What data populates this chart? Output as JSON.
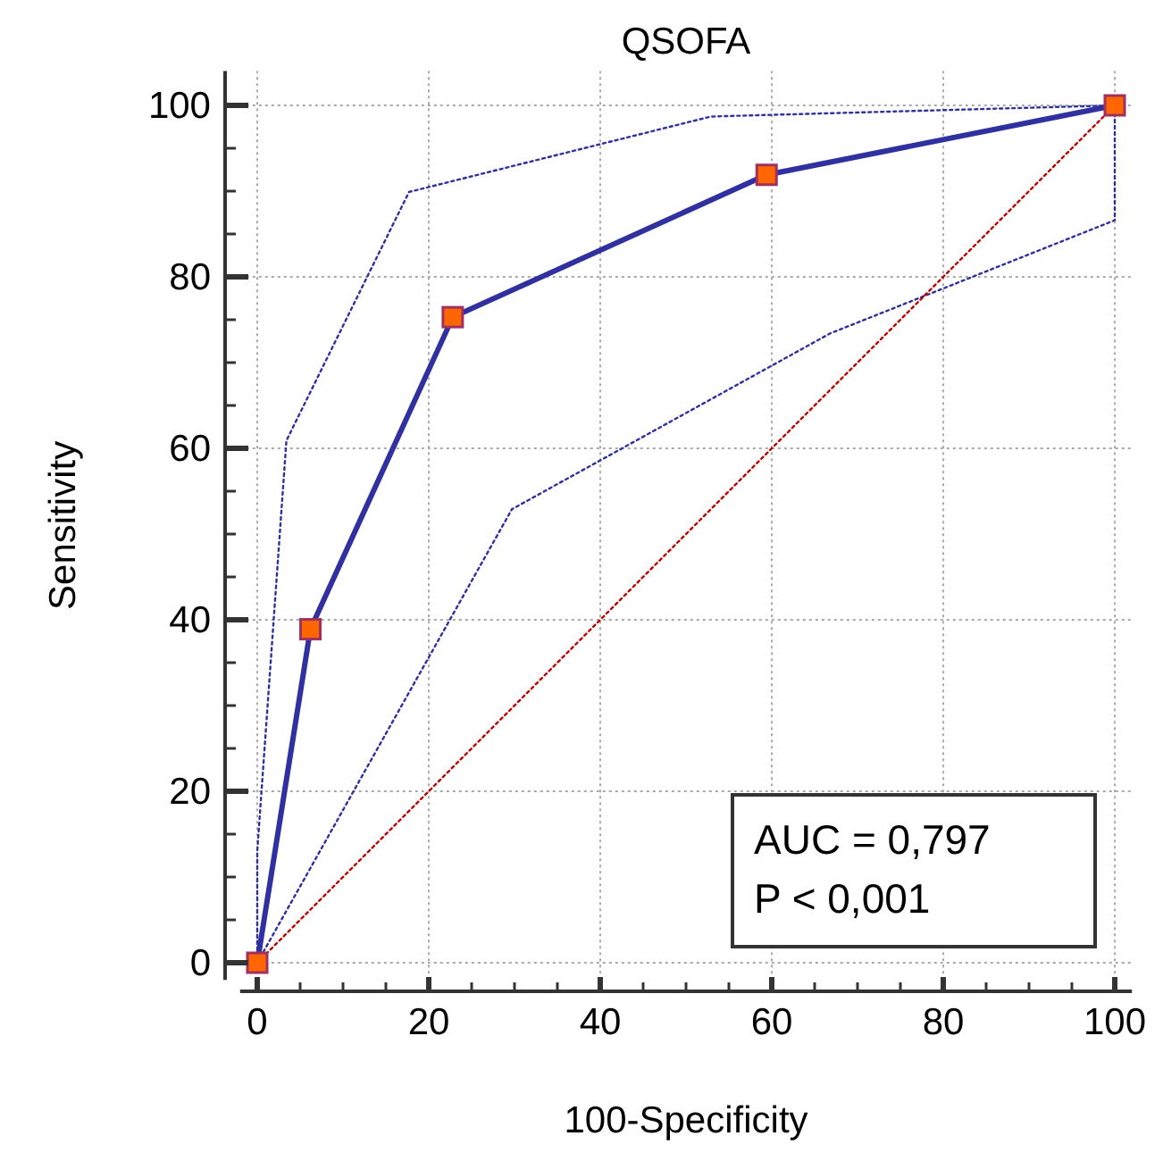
{
  "chart_data": {
    "type": "line",
    "title": "QSOFA",
    "xlabel": "100-Specificity",
    "ylabel": "Sensitivity",
    "xlim": [
      -2,
      102
    ],
    "ylim": [
      -2,
      104
    ],
    "xticks": [
      0,
      {
        "value": 5,
        "label": null
      },
      {
        "value": 10,
        "label": null
      },
      {
        "value": 15,
        "label": null
      },
      20,
      {
        "value": 25,
        "label": null
      },
      {
        "value": 30,
        "label": null
      },
      {
        "value": 35,
        "label": null
      },
      40,
      {
        "value": 45,
        "label": null
      },
      {
        "value": 50,
        "label": null
      },
      {
        "value": 55,
        "label": null
      },
      60,
      {
        "value": 65,
        "label": null
      },
      {
        "value": 70,
        "label": null
      },
      {
        "value": 75,
        "label": null
      },
      80,
      {
        "value": 85,
        "label": null
      },
      {
        "value": 90,
        "label": null
      },
      {
        "value": 95,
        "label": null
      },
      100
    ],
    "yticks": [
      0,
      {
        "value": 5,
        "label": null
      },
      {
        "value": 10,
        "label": null
      },
      {
        "value": 15,
        "label": null
      },
      20,
      {
        "value": 25,
        "label": null
      },
      {
        "value": 30,
        "label": null
      },
      {
        "value": 35,
        "label": null
      },
      40,
      {
        "value": 45,
        "label": null
      },
      {
        "value": 50,
        "label": null
      },
      {
        "value": 55,
        "label": null
      },
      60,
      {
        "value": 65,
        "label": null
      },
      {
        "value": 70,
        "label": null
      },
      {
        "value": 75,
        "label": null
      },
      80,
      {
        "value": 85,
        "label": null
      },
      {
        "value": 90,
        "label": null
      },
      {
        "value": 95,
        "label": null
      },
      100
    ],
    "grid": true,
    "series": [
      {
        "color": "#3030a0",
        "x": [
          0,
          6.2,
          22.8,
          59.4,
          100
        ],
        "values": [
          0,
          38.9,
          75.3,
          91.9,
          100
        ],
        "line_style": "solid",
        "marker": "square"
      },
      {
        "color": "#3030a0",
        "x": [
          0,
          0,
          3.4,
          17.7,
          52.9,
          100
        ],
        "values": [
          0,
          13,
          60.9,
          89.9,
          98.7,
          100
        ],
        "line_style": "dotted"
      },
      {
        "color": "#3030a0",
        "x": [
          0,
          29.7,
          66.8,
          100,
          100
        ],
        "values": [
          0,
          52.9,
          73.4,
          86.6,
          100
        ],
        "line_style": "dotted"
      },
      {
        "color": "#c00000",
        "x": [
          0,
          100
        ],
        "values": [
          0,
          100
        ],
        "line_style": "dotted"
      }
    ],
    "annotations": [
      "AUC = 0,797",
      "P < 0,001"
    ]
  }
}
